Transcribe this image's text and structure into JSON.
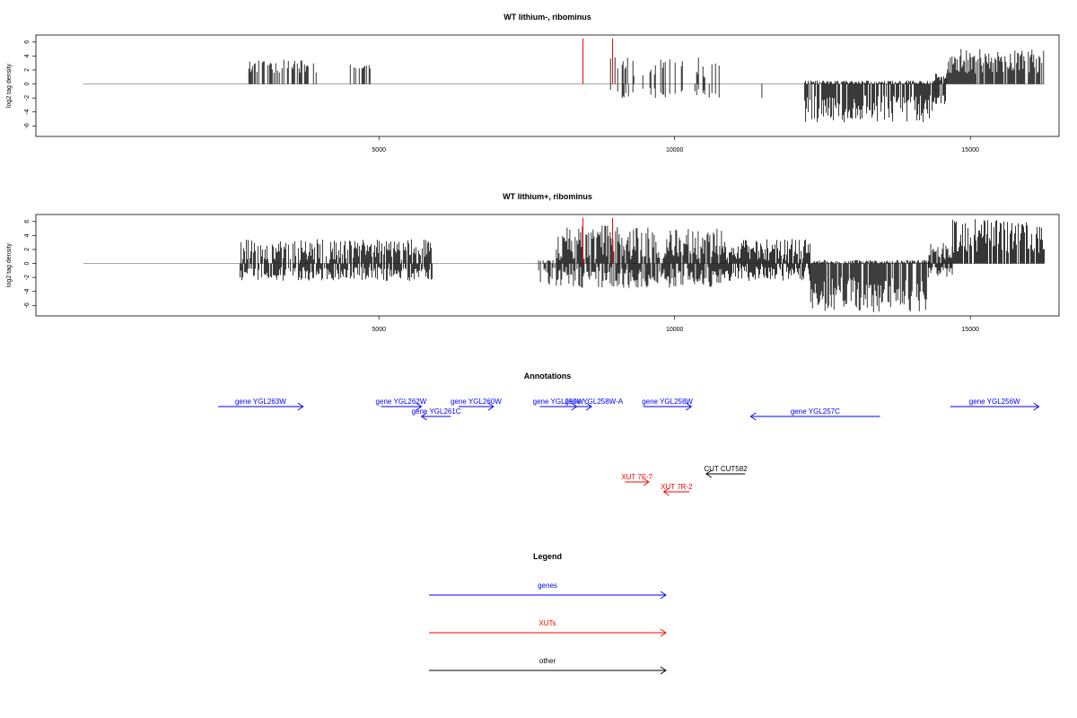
{
  "colors": {
    "gene": "#0000ff",
    "xut": "#ff0000",
    "other": "#000000",
    "baseline": "#999999",
    "marker": "#ff0000",
    "bar": "#000000"
  },
  "chart_data": [
    {
      "type": "bar",
      "title": "WT lithium-, ribominus",
      "ylabel": "log2 tag density",
      "xlim": [
        -800,
        16500
      ],
      "ylim": [
        -7.5,
        7
      ],
      "xticks": [
        5000,
        10000,
        15000
      ],
      "yticks": [
        -6,
        -4,
        -2,
        0,
        2,
        4,
        6
      ],
      "marker_lines": [
        8450,
        8950
      ],
      "marker_height": 6.5,
      "segments": [
        {
          "from": 2800,
          "to": 3950,
          "density": 0.5,
          "pos_min": 1.5,
          "pos_max": 3.5,
          "neg_min": 0,
          "neg_max": 0
        },
        {
          "from": 4500,
          "to": 4900,
          "density": 0.3,
          "pos_min": 2.2,
          "pos_max": 2.8,
          "neg_min": 0,
          "neg_max": 0
        },
        {
          "from": 8200,
          "to": 8300,
          "density": 0.3,
          "pos_min": 0,
          "pos_max": 0,
          "neg_min": 1.5,
          "neg_max": 2
        },
        {
          "from": 8900,
          "to": 10800,
          "density": 0.35,
          "pos_min": 0.8,
          "pos_max": 3.8,
          "neg_min": 0.5,
          "neg_max": 2
        },
        {
          "from": 11400,
          "to": 11500,
          "density": 0.3,
          "pos_min": 0,
          "pos_max": 0,
          "neg_min": 1.8,
          "neg_max": 2.2
        },
        {
          "from": 12200,
          "to": 14400,
          "density": 3.5,
          "pos_min": 0,
          "pos_max": 0.5,
          "neg_min": 1.5,
          "neg_max": 5.5
        },
        {
          "from": 14400,
          "to": 14600,
          "density": 1.5,
          "pos_min": 0.5,
          "pos_max": 1.5,
          "neg_min": 1,
          "neg_max": 3
        },
        {
          "from": 14600,
          "to": 16250,
          "density": 4,
          "pos_min": 1.5,
          "pos_max": 5,
          "neg_min": 0,
          "neg_max": 0
        }
      ]
    },
    {
      "type": "bar",
      "title": "WT lithium+, ribominus",
      "ylabel": "log2 tag density",
      "xlim": [
        -800,
        16500
      ],
      "ylim": [
        -7.5,
        7
      ],
      "xticks": [
        5000,
        10000,
        15000
      ],
      "yticks": [
        -6,
        -4,
        -2,
        0,
        2,
        4,
        6
      ],
      "marker_lines": [
        8450,
        8950
      ],
      "marker_height": 6.5,
      "segments": [
        {
          "from": 2650,
          "to": 5900,
          "density": 0.9,
          "pos_min": 0.5,
          "pos_max": 3.5,
          "neg_min": 0.5,
          "neg_max": 2.5
        },
        {
          "from": 6200,
          "to": 6300,
          "density": 0.3,
          "pos_min": 0,
          "pos_max": 0,
          "neg_min": 1.5,
          "neg_max": 2
        },
        {
          "from": 7700,
          "to": 8000,
          "density": 0.6,
          "pos_min": 0,
          "pos_max": 0.5,
          "neg_min": 0.5,
          "neg_max": 3.5
        },
        {
          "from": 8000,
          "to": 10800,
          "density": 3.5,
          "pos_min": 0.5,
          "pos_max": 5.5,
          "neg_min": 0.5,
          "neg_max": 3.5
        },
        {
          "from": 10800,
          "to": 12300,
          "density": 1.2,
          "pos_min": 0.3,
          "pos_max": 3.5,
          "neg_min": 0.3,
          "neg_max": 2.5
        },
        {
          "from": 12300,
          "to": 14300,
          "density": 5.5,
          "pos_min": 0,
          "pos_max": 0.5,
          "neg_min": 2,
          "neg_max": 7
        },
        {
          "from": 14300,
          "to": 14700,
          "density": 2,
          "pos_min": 0.5,
          "pos_max": 3,
          "neg_min": 0.5,
          "neg_max": 2
        },
        {
          "from": 14700,
          "to": 16250,
          "density": 6,
          "pos_min": 1.5,
          "pos_max": 6.5,
          "neg_min": 0,
          "neg_max": 0
        }
      ]
    }
  ],
  "annotations": {
    "title": "Annotations",
    "items": [
      {
        "label": "gene YGL263W",
        "kind": "gene",
        "from": 2500,
        "to": 4800,
        "row": 0,
        "dir": "right"
      },
      {
        "label": "gene YGL262W",
        "kind": "gene",
        "from": 6900,
        "to": 8000,
        "row": 0,
        "dir": "right"
      },
      {
        "label": "gene YGL261C",
        "kind": "gene",
        "from": 8000,
        "to": 8800,
        "row": 1,
        "dir": "left"
      },
      {
        "label": "gene YGL260W",
        "kind": "gene",
        "from": 9000,
        "to": 9950,
        "row": 0,
        "dir": "right"
      },
      {
        "label": "gene YGL259W",
        "kind": "gene",
        "from": 11200,
        "to": 12200,
        "row": 0,
        "dir": "right"
      },
      {
        "label": "gene YGL258W-A",
        "kind": "gene",
        "from": 12000,
        "to": 12600,
        "row": 0,
        "dir": "right",
        "label_offset": 15
      },
      {
        "label": "gene YGL258W",
        "kind": "gene",
        "from": 14000,
        "to": 15300,
        "row": 0,
        "dir": "right"
      },
      {
        "label": "gene YGL257C",
        "kind": "gene",
        "from": 16900,
        "to": 20400,
        "row": 1,
        "dir": "left"
      },
      {
        "label": "gene YGL256W",
        "kind": "gene",
        "from": 22300,
        "to": 24700,
        "row": 0,
        "dir": "right"
      },
      {
        "label": "CUT CUT582",
        "kind": "other",
        "from": 15700,
        "to": 16750,
        "row": 2,
        "dir": "left"
      },
      {
        "label": "XUT 7F-7",
        "kind": "xut",
        "from": 13500,
        "to": 14150,
        "row": 3,
        "dir": "right"
      },
      {
        "label": "XUT 7R-2",
        "kind": "xut",
        "from": 14550,
        "to": 15250,
        "row": 4,
        "dir": "left"
      }
    ]
  },
  "legend": {
    "title": "Legend",
    "items": [
      {
        "label": "genes",
        "kind": "gene"
      },
      {
        "label": "XUTs",
        "kind": "xut"
      },
      {
        "label": "other",
        "kind": "other"
      }
    ]
  }
}
